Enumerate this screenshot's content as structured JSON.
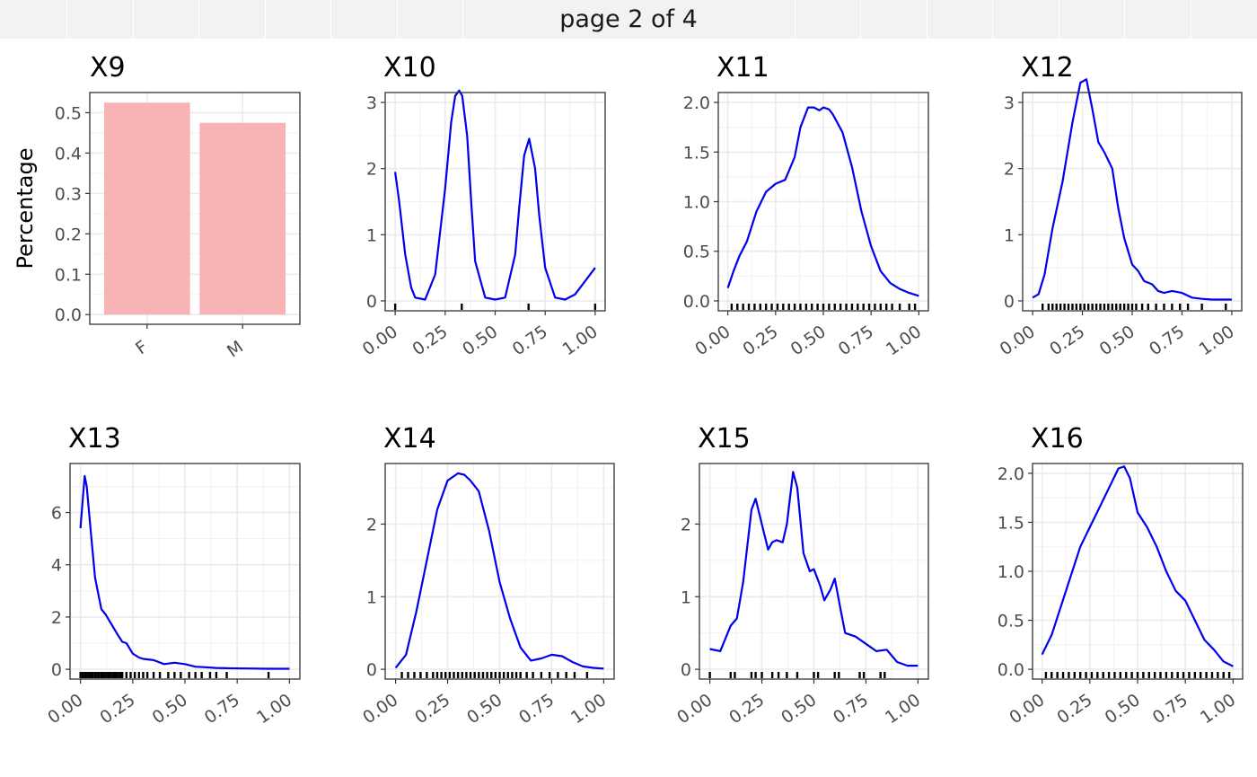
{
  "header": {
    "page_label": "page 2 of 4"
  },
  "colors": {
    "bar_fill": "#F8B4B4",
    "density_line": "#0000EE",
    "rug": "#000000",
    "grid": "#EBEBEB",
    "panel_border": "#333333"
  },
  "chart_data": [
    {
      "type": "bar",
      "title": "X9",
      "ylabel": "Percentage",
      "categories": [
        "F",
        "M"
      ],
      "values": [
        0.525,
        0.475
      ],
      "ylim": [
        0,
        0.5
      ],
      "yticks": [
        "0.0",
        "0.1",
        "0.2",
        "0.3",
        "0.4",
        "0.5"
      ],
      "grid": true
    },
    {
      "type": "line",
      "title": "X10",
      "xticks": [
        "0.00",
        "0.25",
        "0.50",
        "0.75",
        "1.00"
      ],
      "yticks": [
        "0",
        "1",
        "2",
        "3"
      ],
      "ylim": [
        0,
        3
      ],
      "x": [
        0,
        0.02,
        0.05,
        0.08,
        0.1,
        0.15,
        0.2,
        0.25,
        0.28,
        0.3,
        0.32,
        0.335,
        0.36,
        0.38,
        0.4,
        0.45,
        0.5,
        0.55,
        0.6,
        0.62,
        0.645,
        0.67,
        0.7,
        0.72,
        0.75,
        0.8,
        0.85,
        0.9,
        0.95,
        1.0
      ],
      "y": [
        1.95,
        1.5,
        0.7,
        0.2,
        0.05,
        0.02,
        0.4,
        1.7,
        2.7,
        3.1,
        3.18,
        3.1,
        2.5,
        1.5,
        0.6,
        0.05,
        0.02,
        0.05,
        0.7,
        1.4,
        2.2,
        2.45,
        2.0,
        1.3,
        0.5,
        0.05,
        0.02,
        0.1,
        0.3,
        0.5
      ],
      "rug": [
        0,
        0.333,
        0.667,
        1.0
      ]
    },
    {
      "type": "line",
      "title": "X11",
      "xticks": [
        "0.00",
        "0.25",
        "0.50",
        "0.75",
        "1.00"
      ],
      "yticks": [
        "0.0",
        "0.5",
        "1.0",
        "1.5",
        "2.0"
      ],
      "ylim": [
        0,
        2
      ],
      "x": [
        0,
        0.03,
        0.06,
        0.1,
        0.15,
        0.2,
        0.25,
        0.3,
        0.35,
        0.38,
        0.42,
        0.45,
        0.48,
        0.5,
        0.53,
        0.55,
        0.6,
        0.65,
        0.7,
        0.75,
        0.8,
        0.85,
        0.9,
        0.95,
        1.0
      ],
      "y": [
        0.13,
        0.3,
        0.45,
        0.6,
        0.9,
        1.1,
        1.18,
        1.22,
        1.45,
        1.75,
        1.95,
        1.95,
        1.92,
        1.95,
        1.93,
        1.88,
        1.7,
        1.35,
        0.9,
        0.55,
        0.3,
        0.18,
        0.12,
        0.08,
        0.05
      ],
      "rug": [
        0.02,
        0.05,
        0.08,
        0.11,
        0.14,
        0.17,
        0.2,
        0.23,
        0.26,
        0.29,
        0.32,
        0.35,
        0.38,
        0.41,
        0.44,
        0.47,
        0.5,
        0.53,
        0.56,
        0.59,
        0.62,
        0.65,
        0.68,
        0.71,
        0.74,
        0.77,
        0.8,
        0.83,
        0.86,
        0.9,
        0.95,
        0.98
      ]
    },
    {
      "type": "line",
      "title": "X12",
      "xticks": [
        "0.00",
        "0.25",
        "0.50",
        "0.75",
        "1.00"
      ],
      "yticks": [
        "0",
        "1",
        "2",
        "3"
      ],
      "ylim": [
        0,
        3
      ],
      "x": [
        0,
        0.03,
        0.06,
        0.1,
        0.15,
        0.2,
        0.24,
        0.27,
        0.3,
        0.33,
        0.36,
        0.4,
        0.43,
        0.46,
        0.5,
        0.53,
        0.56,
        0.6,
        0.63,
        0.66,
        0.7,
        0.75,
        0.8,
        0.85,
        0.9,
        0.95,
        1.0
      ],
      "y": [
        0.05,
        0.1,
        0.4,
        1.1,
        1.8,
        2.7,
        3.3,
        3.35,
        2.9,
        2.4,
        2.25,
        2.0,
        1.4,
        0.95,
        0.55,
        0.45,
        0.3,
        0.25,
        0.15,
        0.12,
        0.15,
        0.12,
        0.05,
        0.03,
        0.02,
        0.02,
        0.02
      ],
      "rug": [
        0.05,
        0.08,
        0.1,
        0.12,
        0.14,
        0.16,
        0.18,
        0.2,
        0.22,
        0.24,
        0.26,
        0.28,
        0.3,
        0.32,
        0.34,
        0.36,
        0.38,
        0.4,
        0.42,
        0.44,
        0.46,
        0.48,
        0.5,
        0.52,
        0.55,
        0.58,
        0.62,
        0.66,
        0.7,
        0.74,
        0.78,
        0.85,
        0.97
      ]
    },
    {
      "type": "line",
      "title": "X13",
      "xticks": [
        "0.00",
        "0.25",
        "0.50",
        "0.75",
        "1.00"
      ],
      "yticks": [
        "0",
        "2",
        "4",
        "6"
      ],
      "ylim": [
        0,
        7.5
      ],
      "x": [
        0,
        0.02,
        0.03,
        0.05,
        0.07,
        0.1,
        0.12,
        0.15,
        0.18,
        0.2,
        0.22,
        0.25,
        0.28,
        0.3,
        0.35,
        0.4,
        0.45,
        0.5,
        0.55,
        0.6,
        0.65,
        0.7,
        0.8,
        0.9,
        1.0
      ],
      "y": [
        5.4,
        7.4,
        7.0,
        5.2,
        3.5,
        2.3,
        2.1,
        1.7,
        1.3,
        1.05,
        1.0,
        0.6,
        0.45,
        0.4,
        0.35,
        0.2,
        0.25,
        0.2,
        0.1,
        0.08,
        0.05,
        0.04,
        0.03,
        0.02,
        0.02
      ],
      "rug": [
        0.0,
        0.01,
        0.02,
        0.03,
        0.04,
        0.05,
        0.06,
        0.07,
        0.08,
        0.09,
        0.1,
        0.11,
        0.12,
        0.13,
        0.14,
        0.15,
        0.16,
        0.17,
        0.18,
        0.19,
        0.2,
        0.22,
        0.24,
        0.26,
        0.28,
        0.3,
        0.32,
        0.35,
        0.38,
        0.42,
        0.45,
        0.48,
        0.52,
        0.55,
        0.58,
        0.62,
        0.65,
        0.7,
        0.9
      ]
    },
    {
      "type": "line",
      "title": "X14",
      "xticks": [
        "0.00",
        "0.25",
        "0.50",
        "0.75",
        "1.00"
      ],
      "yticks": [
        "0",
        "1",
        "2"
      ],
      "ylim": [
        0,
        2.7
      ],
      "x": [
        0,
        0.05,
        0.1,
        0.15,
        0.2,
        0.25,
        0.3,
        0.33,
        0.36,
        0.4,
        0.45,
        0.5,
        0.55,
        0.6,
        0.65,
        0.7,
        0.75,
        0.8,
        0.85,
        0.9,
        0.95,
        1.0
      ],
      "y": [
        0.02,
        0.2,
        0.8,
        1.5,
        2.2,
        2.6,
        2.7,
        2.68,
        2.6,
        2.45,
        1.9,
        1.2,
        0.7,
        0.3,
        0.12,
        0.15,
        0.2,
        0.18,
        0.1,
        0.04,
        0.02,
        0.01
      ],
      "rug": [
        0.03,
        0.06,
        0.09,
        0.12,
        0.15,
        0.18,
        0.2,
        0.22,
        0.24,
        0.26,
        0.28,
        0.3,
        0.32,
        0.34,
        0.36,
        0.38,
        0.4,
        0.42,
        0.44,
        0.46,
        0.48,
        0.5,
        0.52,
        0.54,
        0.56,
        0.58,
        0.6,
        0.63,
        0.66,
        0.7,
        0.74,
        0.78,
        0.82,
        0.86,
        0.92
      ]
    },
    {
      "type": "line",
      "title": "X15",
      "xticks": [
        "0.00",
        "0.25",
        "0.50",
        "0.75",
        "1.00"
      ],
      "yticks": [
        "0",
        "1",
        "2"
      ],
      "ylim": [
        0,
        2.7
      ],
      "x": [
        0,
        0.05,
        0.1,
        0.13,
        0.16,
        0.2,
        0.22,
        0.25,
        0.28,
        0.3,
        0.32,
        0.35,
        0.37,
        0.4,
        0.42,
        0.45,
        0.48,
        0.5,
        0.53,
        0.55,
        0.58,
        0.6,
        0.63,
        0.65,
        0.7,
        0.75,
        0.8,
        0.85,
        0.9,
        0.95,
        1.0
      ],
      "y": [
        0.28,
        0.25,
        0.6,
        0.7,
        1.2,
        2.2,
        2.35,
        2.0,
        1.65,
        1.75,
        1.78,
        1.75,
        2.0,
        2.72,
        2.5,
        1.6,
        1.35,
        1.38,
        1.15,
        0.95,
        1.1,
        1.25,
        0.8,
        0.5,
        0.45,
        0.35,
        0.25,
        0.27,
        0.1,
        0.05,
        0.05
      ],
      "rug": [
        0.0,
        0.1,
        0.12,
        0.2,
        0.22,
        0.25,
        0.3,
        0.33,
        0.37,
        0.42,
        0.5,
        0.52,
        0.6,
        0.62,
        0.72,
        0.74,
        0.82,
        0.84
      ]
    },
    {
      "type": "line",
      "title": "X16",
      "xticks": [
        "0.00",
        "0.25",
        "0.50",
        "0.75",
        "1.00"
      ],
      "yticks": [
        "0.0",
        "0.5",
        "1.0",
        "1.5",
        "2.0"
      ],
      "ylim": [
        0,
        2.0
      ],
      "x": [
        0,
        0.05,
        0.1,
        0.15,
        0.2,
        0.25,
        0.3,
        0.35,
        0.4,
        0.43,
        0.46,
        0.5,
        0.55,
        0.6,
        0.65,
        0.7,
        0.75,
        0.8,
        0.85,
        0.9,
        0.95,
        1.0
      ],
      "y": [
        0.15,
        0.35,
        0.65,
        0.95,
        1.25,
        1.45,
        1.65,
        1.85,
        2.05,
        2.07,
        1.95,
        1.6,
        1.45,
        1.25,
        1.0,
        0.8,
        0.7,
        0.5,
        0.3,
        0.2,
        0.08,
        0.03
      ],
      "rug": [
        0.02,
        0.05,
        0.08,
        0.11,
        0.14,
        0.17,
        0.2,
        0.23,
        0.26,
        0.29,
        0.32,
        0.35,
        0.38,
        0.41,
        0.44,
        0.47,
        0.5,
        0.53,
        0.56,
        0.59,
        0.62,
        0.65,
        0.68,
        0.71,
        0.74,
        0.77,
        0.8,
        0.83,
        0.86,
        0.89,
        0.92,
        0.95,
        0.98
      ]
    }
  ]
}
